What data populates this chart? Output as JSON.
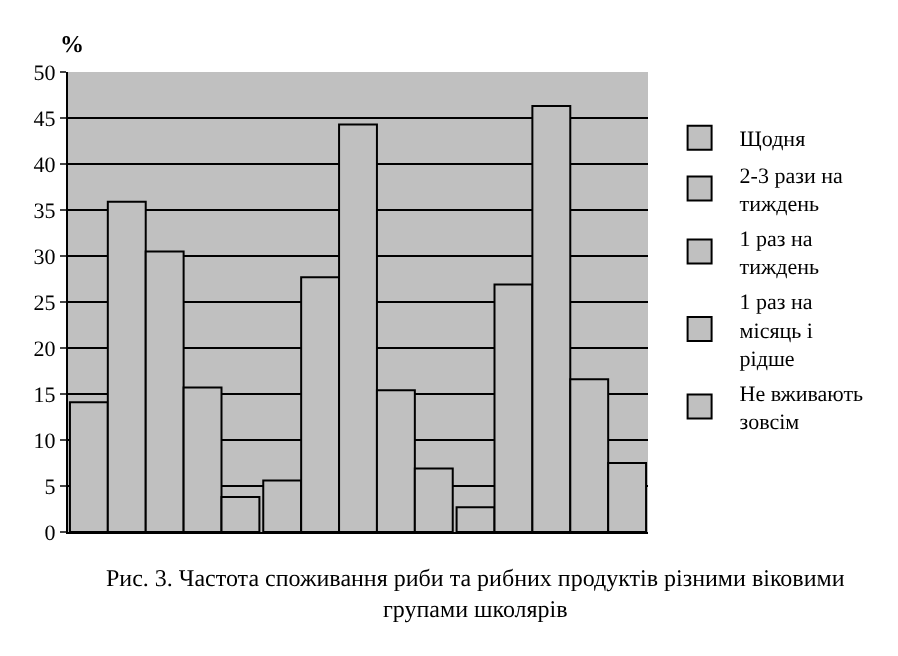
{
  "chart_data": {
    "type": "bar",
    "ylabel": "%",
    "categories": [
      null,
      null,
      null
    ],
    "series": [
      {
        "name": "Щодня",
        "color": "#c0c0c0",
        "values": [
          14.1,
          5.6,
          2.7
        ]
      },
      {
        "name": "2-3 рази на тиждень",
        "color": "#c0c0c0",
        "values": [
          35.9,
          27.7,
          26.9
        ]
      },
      {
        "name": "1 раз на тиждень",
        "color": "#c0c0c0",
        "values": [
          30.5,
          44.3,
          46.3
        ]
      },
      {
        "name": "1 раз на місяць і рідше",
        "color": "#c0c0c0",
        "values": [
          15.7,
          15.4,
          16.6
        ]
      },
      {
        "name": "Не вживають зовсім",
        "color": "#c0c0c0",
        "values": [
          3.8,
          6.9,
          7.5
        ]
      }
    ],
    "ylim": [
      0,
      50
    ],
    "yticks": [
      0,
      5,
      10,
      15,
      20,
      25,
      30,
      35,
      40,
      45,
      50
    ],
    "grid": "y",
    "legend": "right",
    "annotations": [
      "Рис. 3. Частота споживання риби та рибних продуктів різними віковими групами школярів"
    ]
  }
}
